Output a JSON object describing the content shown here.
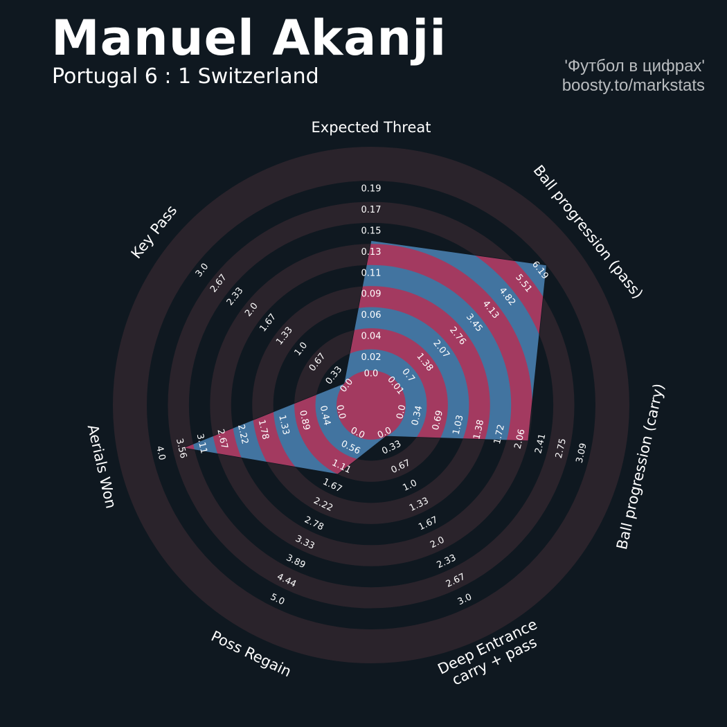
{
  "header": {
    "player": "Manuel Akanji",
    "match": "Portugal 6 : 1 Switzerland",
    "credit_line1": "'Футбол в цифрах'",
    "credit_line2": "boosty.to/markstats"
  },
  "colors": {
    "background": "#0f1820",
    "ring_band": "#2a232b",
    "value_blue": "#4274a0",
    "value_red": "#a33a60",
    "text": "#ffffff"
  },
  "chart_data": {
    "type": "radar",
    "title": "Manuel Akanji",
    "subtitle": "Portugal 6 : 1 Switzerland",
    "legend": "none",
    "params": [
      {
        "label": "Expected Threat",
        "min": 0.0,
        "max": 0.19,
        "value": 0.13,
        "ticks": [
          "0.0",
          "0.02",
          "0.04",
          "0.06",
          "0.09",
          "0.11",
          "0.13",
          "0.15",
          "0.17",
          "0.19"
        ]
      },
      {
        "label": "Ball progression (pass)",
        "min": 0.01,
        "max": 6.19,
        "value": 6.19,
        "ticks": [
          "0.01",
          "0.7",
          "1.38",
          "2.07",
          "2.76",
          "3.45",
          "4.13",
          "4.82",
          "5.51",
          "6.19"
        ]
      },
      {
        "label": "Ball progression (carry)",
        "min": 0.0,
        "max": 3.09,
        "value": 2.06,
        "ticks": [
          "0.0",
          "0.34",
          "0.69",
          "1.03",
          "1.38",
          "1.72",
          "2.06",
          "2.41",
          "2.75",
          "3.09"
        ]
      },
      {
        "label": "Deep Entrance\ncarry + pass",
        "min": 0.0,
        "max": 3.0,
        "value": 0.0,
        "ticks": [
          "0.0",
          "0.33",
          "0.67",
          "1.0",
          "1.33",
          "1.67",
          "2.0",
          "2.33",
          "2.67",
          "3.0"
        ]
      },
      {
        "label": "Poss Regain",
        "min": 0.0,
        "max": 5.0,
        "value": 1.11,
        "ticks": [
          "0.0",
          "0.56",
          "1.11",
          "1.67",
          "2.22",
          "2.78",
          "3.33",
          "3.89",
          "4.44",
          "5.0"
        ]
      },
      {
        "label": "Aerials Won",
        "min": 0.0,
        "max": 4.0,
        "value": 3.33,
        "ticks": [
          "0.0",
          "0.44",
          "0.89",
          "1.33",
          "1.78",
          "2.22",
          "2.67",
          "3.11",
          "3.56",
          "4.0"
        ]
      },
      {
        "label": "Key Pass",
        "min": 0.0,
        "max": 3.0,
        "value": 0.0,
        "ticks": [
          "0.0",
          "0.33",
          "0.67",
          "1.0",
          "1.33",
          "1.67",
          "2.0",
          "2.33",
          "2.67",
          "3.0"
        ]
      }
    ]
  }
}
